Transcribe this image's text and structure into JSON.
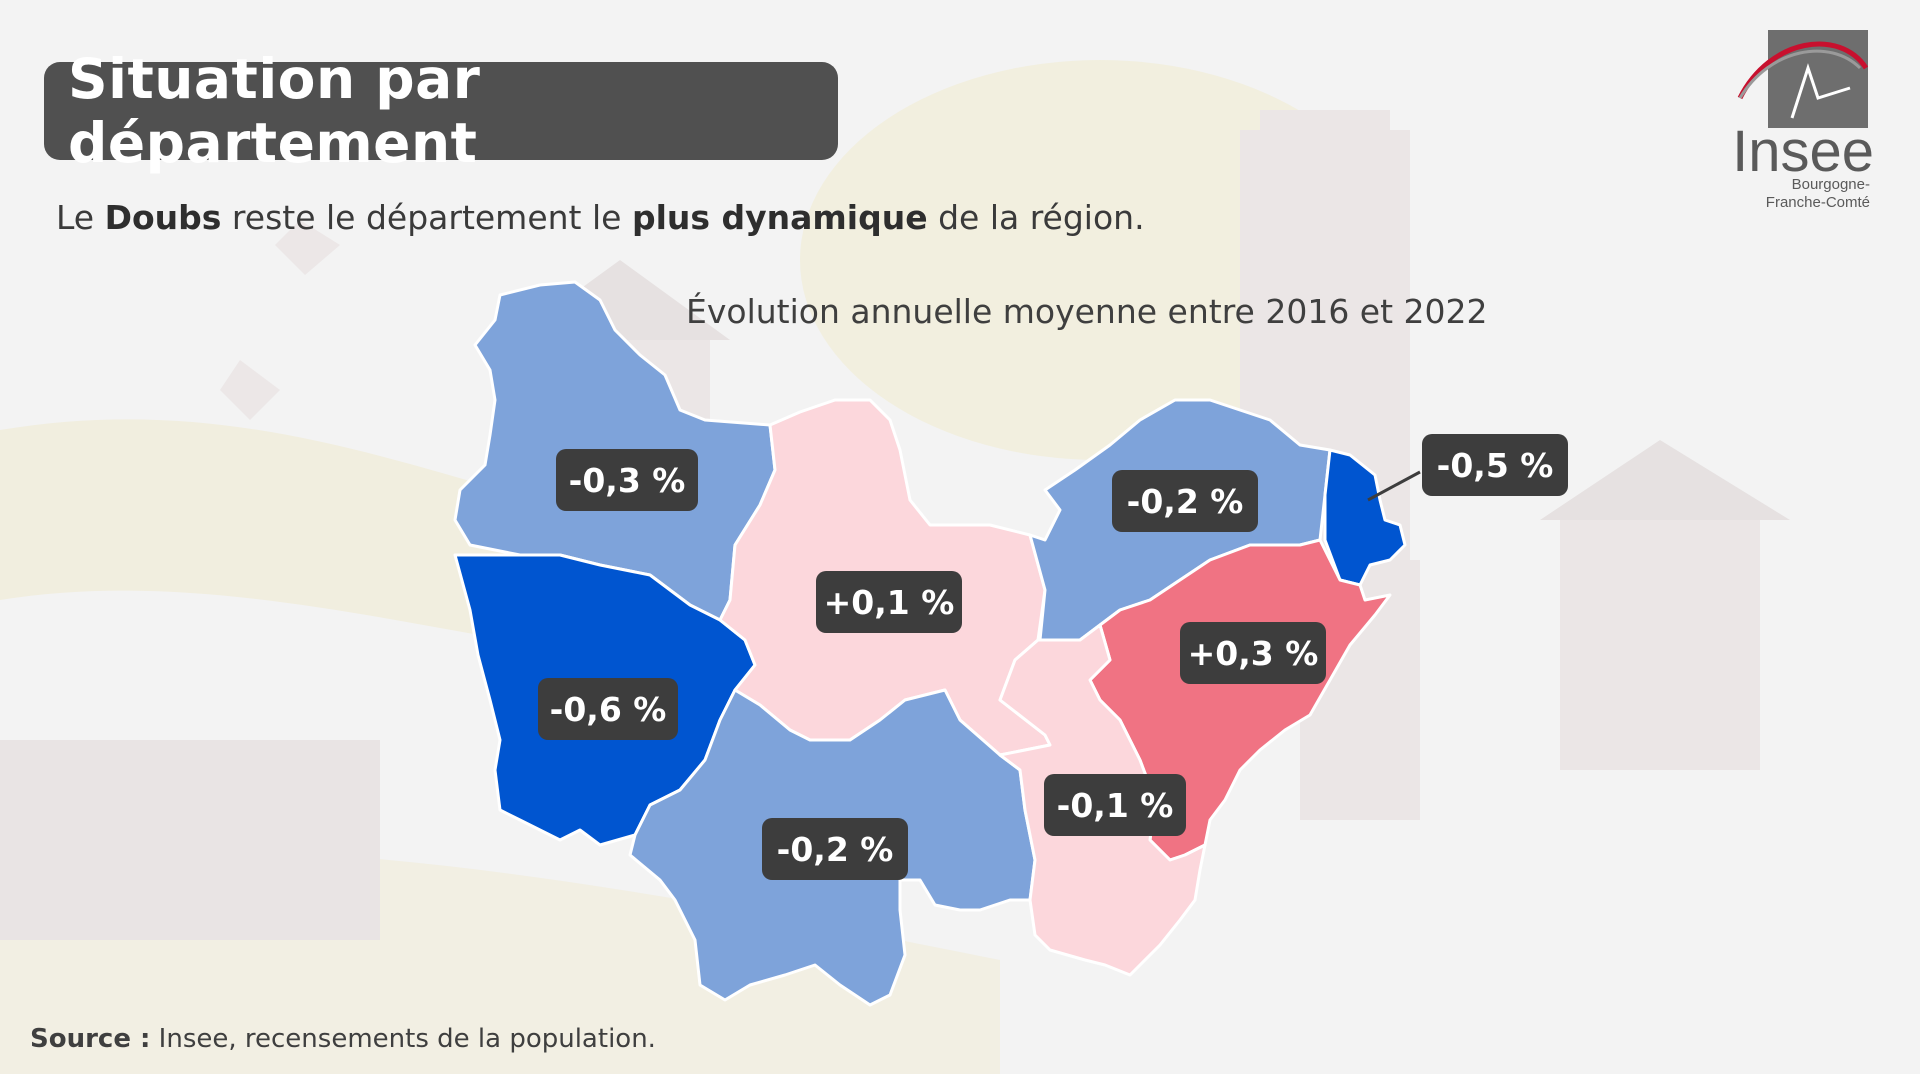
{
  "title": "Situation par département",
  "subtitle": {
    "p1": "Le ",
    "b1": "Doubs",
    "p2": " reste le département le ",
    "b2": "plus dynamique",
    "p3": " de la région."
  },
  "map_title": "Évolution annuelle moyenne entre 2016 et 2022",
  "source": {
    "label": "Source :",
    "text": " Insee, recensements de la population."
  },
  "logo": {
    "name": "Insee",
    "region_line1": "Bourgogne-",
    "region_line2": "Franche-Comté"
  },
  "colors": {
    "strong_decline": "#0055d0",
    "decline": "#7ea3da",
    "slight": "#fcd7dc",
    "growth": "#f07383",
    "label_bg": "#3d3d3d"
  },
  "departments": [
    {
      "value": -0.3,
      "label": "-0,3 %",
      "class": "decline"
    },
    {
      "value": -0.6,
      "label": "-0,6 %",
      "class": "strong_decline"
    },
    {
      "value": 0.1,
      "label": "+0,1 %",
      "class": "slight"
    },
    {
      "value": -0.2,
      "label": "-0,2 %",
      "class": "decline"
    },
    {
      "value": -0.2,
      "label": "-0,2 %",
      "class": "decline"
    },
    {
      "value": -0.5,
      "label": "-0,5 %",
      "class": "strong_decline"
    },
    {
      "value": 0.3,
      "label": "+0,3 %",
      "class": "growth"
    },
    {
      "value": -0.1,
      "label": "-0,1 %",
      "class": "slight"
    }
  ]
}
